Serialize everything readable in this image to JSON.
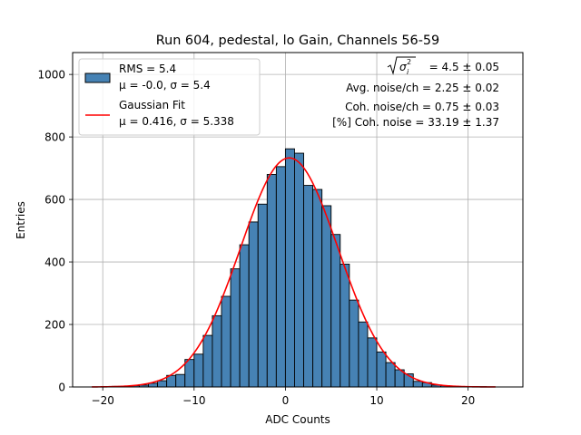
{
  "chart_data": {
    "type": "bar",
    "title": "Run 604, pedestal, lo Gain, Channels 56-59",
    "xlabel": "ADC Counts",
    "ylabel": "Entries",
    "xlim": [
      -23.3,
      26.0
    ],
    "ylim": [
      0,
      1070
    ],
    "xticks": [
      -20,
      -10,
      0,
      10,
      20
    ],
    "xtick_labels": [
      "−20",
      "−10",
      "0",
      "10",
      "20"
    ],
    "yticks": [
      0,
      200,
      400,
      600,
      800,
      1000
    ],
    "grid": true,
    "legend_position": "top-left",
    "bar_color": "#4682b4",
    "curve_color": "#ff0000",
    "histogram": {
      "bin_start": -20,
      "bin_width": 1,
      "counts": [
        1,
        2,
        3,
        4,
        6,
        12,
        20,
        37,
        40,
        88,
        105,
        165,
        228,
        290,
        378,
        455,
        528,
        585,
        680,
        705,
        762,
        748,
        645,
        632,
        580,
        488,
        393,
        278,
        208,
        157,
        112,
        78,
        55,
        42,
        18,
        14,
        6,
        4,
        2,
        1,
        1,
        1
      ]
    },
    "fit": {
      "mu": 0.416,
      "sigma": 5.338,
      "amplitude": 733,
      "x_range": [
        -21.2,
        23.0
      ]
    },
    "legend": {
      "hist_label_1": "RMS = 5.4",
      "hist_label_2": "μ = -0.0, σ = 5.4",
      "fit_label_1": "Gaussian Fit",
      "fit_label_2": "μ = 0.416, σ = 5.338"
    },
    "annotations": {
      "line1_value": "= 4.5 ± 0.05",
      "line2": "Avg. noise/ch = 2.25 ± 0.02",
      "line3": "Coh. noise/ch = 0.75 ± 0.03",
      "line4": "[%] Coh. noise = 33.19 ± 1.37"
    }
  }
}
